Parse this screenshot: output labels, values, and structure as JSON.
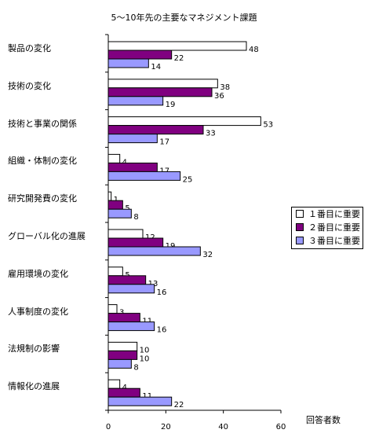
{
  "chart_data": {
    "type": "bar",
    "orientation": "horizontal",
    "title": "5〜10年先の主要なマネジメント課題",
    "xlabel": "回答者数",
    "xlim": [
      0,
      60
    ],
    "xticks": [
      0,
      20,
      40,
      60
    ],
    "grid": false,
    "legend_position": "right",
    "categories": [
      "製品の変化",
      "技術の変化",
      "技術と事業の関係",
      "組織・体制の変化",
      "研究開発費の変化",
      "グローバル化の進展",
      "雇用環境の変化",
      "人事制度の変化",
      "法規制の影響",
      "情報化の進展"
    ],
    "series": [
      {
        "name": "１番目に重要",
        "color": "#ffffff",
        "values": [
          48,
          38,
          53,
          4,
          1,
          12,
          5,
          3,
          10,
          4
        ]
      },
      {
        "name": "２番目に重要",
        "color": "#800080",
        "values": [
          22,
          36,
          33,
          17,
          5,
          19,
          13,
          11,
          10,
          11
        ]
      },
      {
        "name": "３番目に重要",
        "color": "#9999ff",
        "values": [
          14,
          19,
          17,
          25,
          8,
          32,
          16,
          16,
          8,
          22
        ]
      }
    ]
  }
}
